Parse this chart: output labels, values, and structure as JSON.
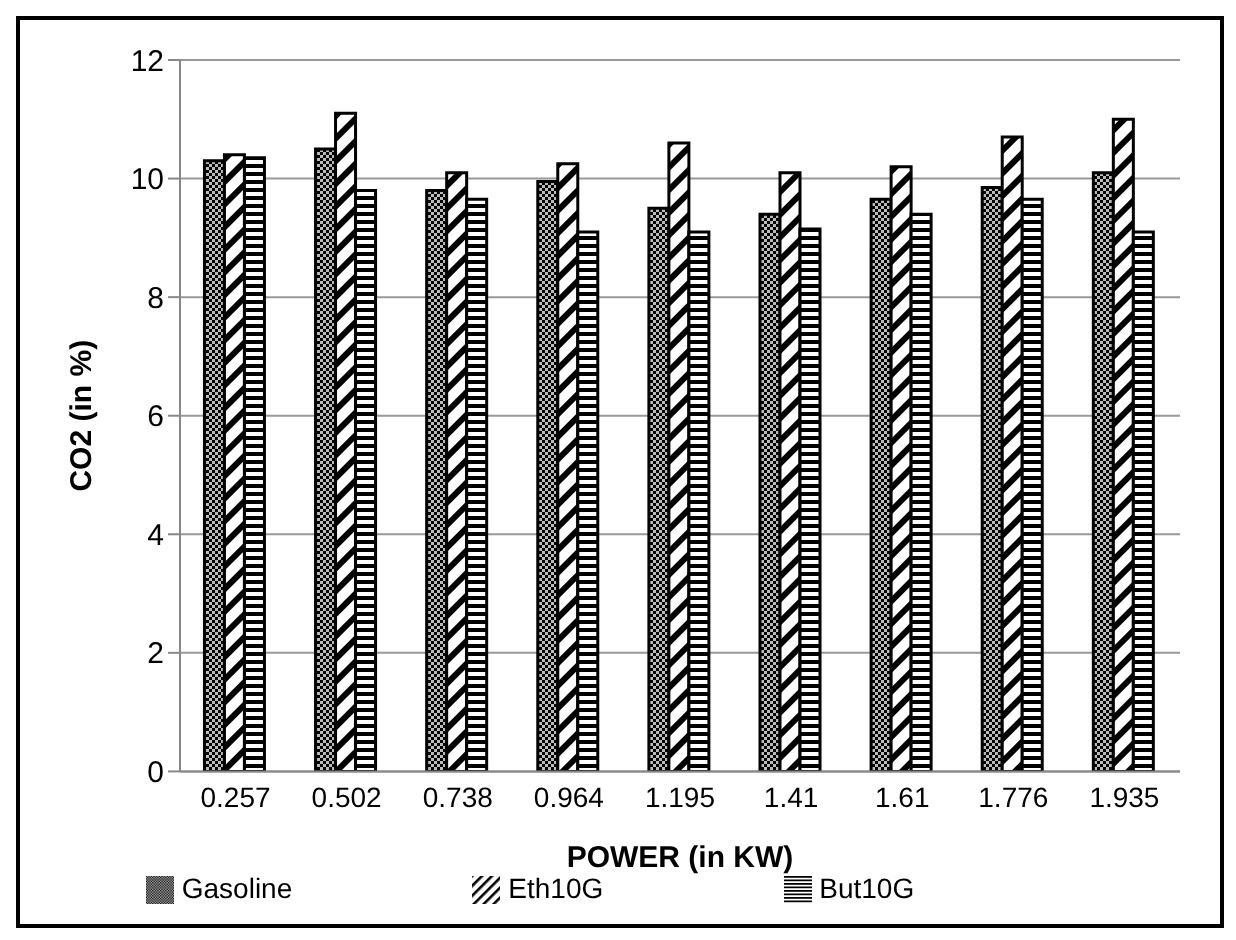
{
  "chart_data": {
    "type": "bar",
    "xlabel": "POWER (in KW)",
    "ylabel": "CO2 (in %)",
    "categories": [
      "0.257",
      "0.502",
      "0.738",
      "0.964",
      "1.195",
      "1.41",
      "1.61",
      "1.776",
      "1.935"
    ],
    "series": [
      {
        "name": "Gasoline",
        "color": "#000000",
        "values": [
          10.3,
          10.5,
          9.8,
          9.95,
          9.5,
          9.4,
          9.65,
          9.85,
          10.1
        ]
      },
      {
        "name": "Eth10G",
        "color": "#000000",
        "values": [
          10.4,
          11.1,
          10.1,
          10.25,
          10.6,
          10.1,
          10.2,
          10.7,
          11.0
        ]
      },
      {
        "name": "But10G",
        "color": "#000000",
        "values": [
          10.35,
          9.8,
          9.65,
          9.1,
          9.1,
          9.15,
          9.4,
          9.65,
          9.1
        ]
      }
    ],
    "ylim": [
      0,
      12
    ],
    "yticks": [
      0,
      2,
      4,
      6,
      8,
      10,
      12
    ],
    "grid": "y",
    "legend": "bottom"
  }
}
